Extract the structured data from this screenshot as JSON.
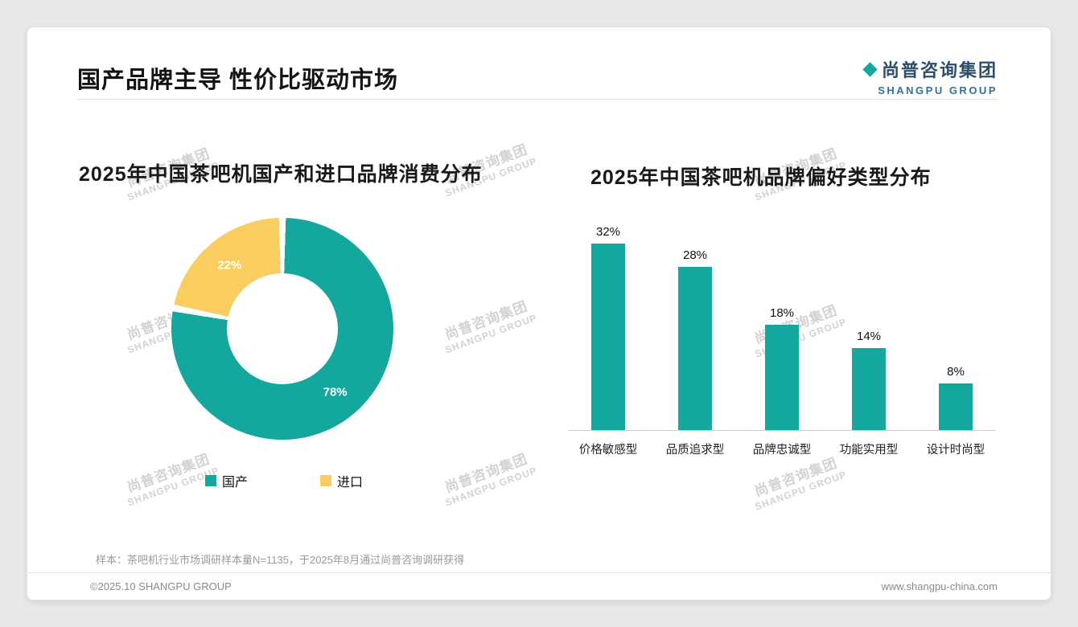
{
  "page": {
    "title": "国产品牌主导 性价比驱动市场",
    "footnote": "样本：茶吧机行业市场调研样本量N=1135，于2025年8月通过尚普咨询调研获得",
    "footer_left": "©2025.10 SHANGPU GROUP",
    "footer_right": "www.shangpu-china.com"
  },
  "logo": {
    "cn": "尚普咨询集团",
    "en": "SHANGPU GROUP"
  },
  "watermark": {
    "line1": "尚普咨询集团",
    "line2": "SHANGPU GROUP"
  },
  "colors": {
    "teal": "#14A79E",
    "yellow": "#F9CD5F",
    "logo_navy": "#2E4D6B",
    "logo_blue": "#356F96",
    "axis_gray": "#CCCCCC"
  },
  "chart_data": [
    {
      "type": "pie",
      "subtype": "donut",
      "title": "2025年中国茶吧机国产和进口品牌消费分布",
      "labels": [
        "国产",
        "进口"
      ],
      "values": [
        78,
        22
      ],
      "unit": "%",
      "colors": [
        "#14A79E",
        "#F9CD5F"
      ],
      "legend_position": "bottom",
      "data_labels": [
        "78%",
        "22%"
      ]
    },
    {
      "type": "bar",
      "title": "2025年中国茶吧机品牌偏好类型分布",
      "categories": [
        "价格敏感型",
        "品质追求型",
        "品牌忠诚型",
        "功能实用型",
        "设计时尚型"
      ],
      "values": [
        32,
        28,
        18,
        14,
        8
      ],
      "unit": "%",
      "bar_color": "#14A79E",
      "ylim": [
        0,
        35
      ],
      "grid": false,
      "data_labels": [
        "32%",
        "28%",
        "18%",
        "14%",
        "8%"
      ]
    }
  ]
}
